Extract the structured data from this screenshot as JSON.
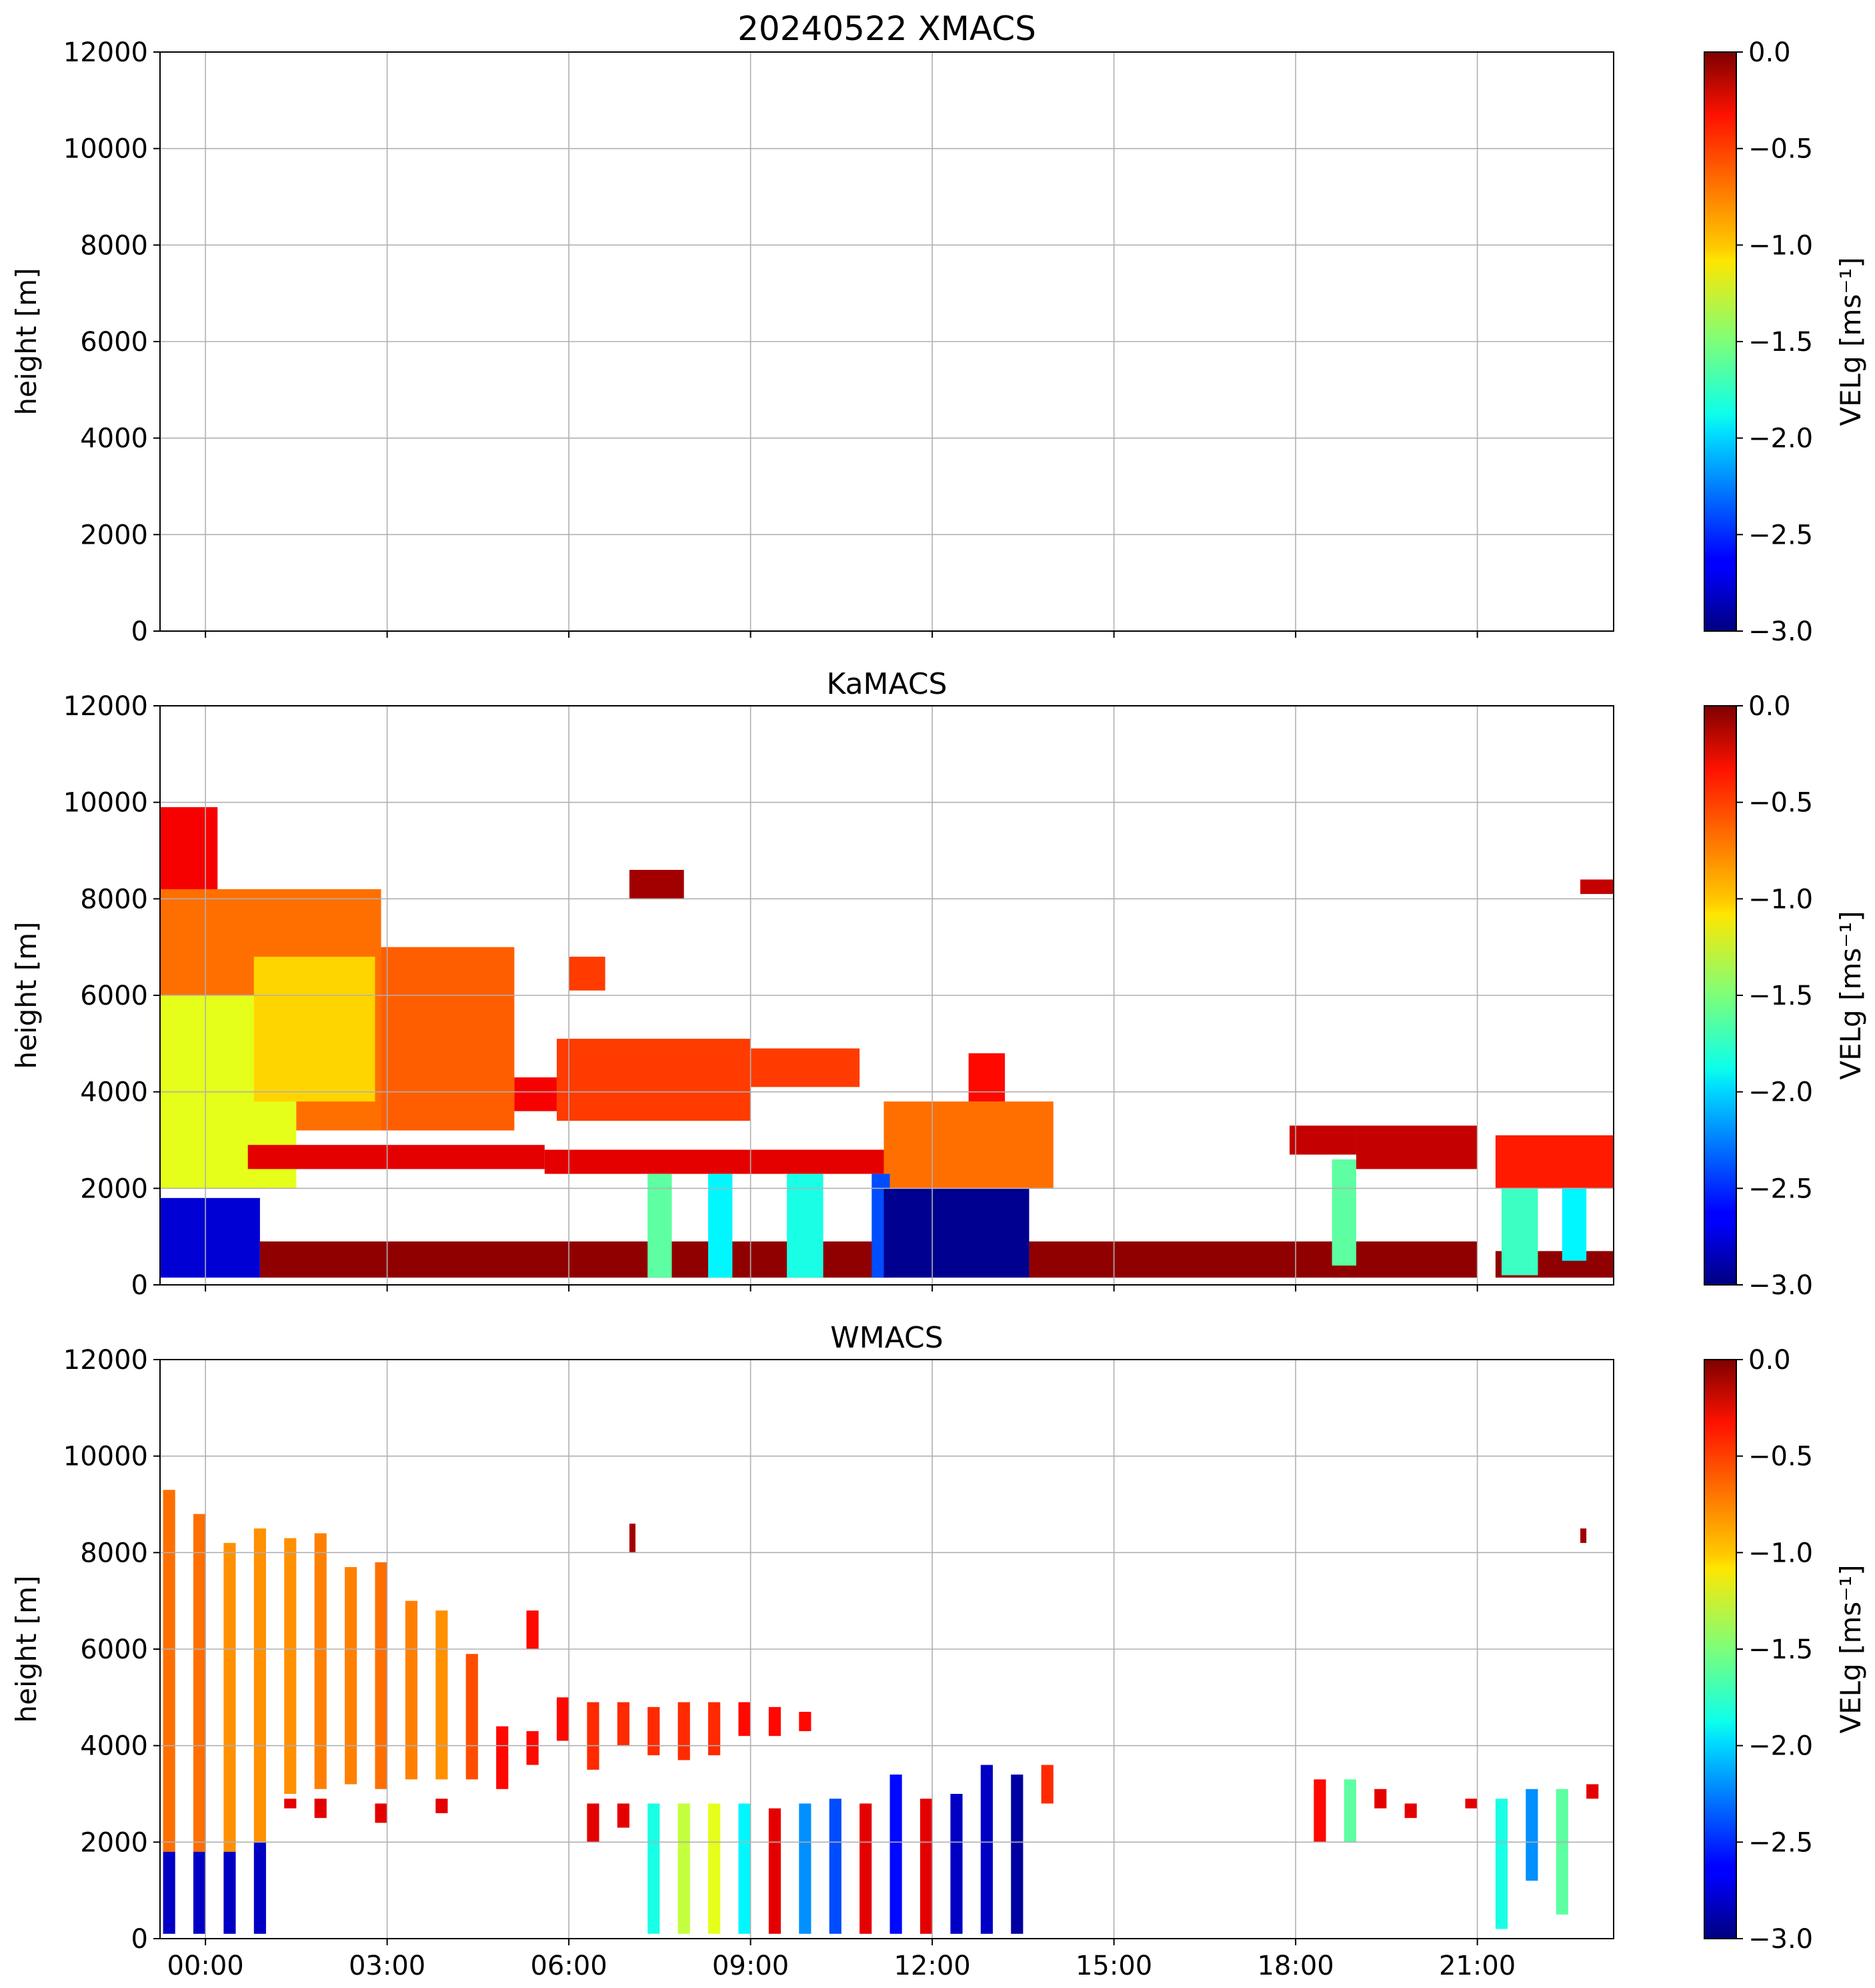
{
  "figure": {
    "title_prefix": "20240522"
  },
  "chart_data": [
    {
      "type": "heatmap",
      "title": "XMACS",
      "ylabel": "height [m]",
      "ylim": [
        0,
        12000
      ],
      "yticks": [
        0,
        2000,
        4000,
        6000,
        8000,
        10000,
        12000
      ],
      "xlim": [
        -0.75,
        23.25
      ],
      "xticks": [
        0,
        3,
        6,
        9,
        12,
        15,
        18,
        21
      ],
      "xtick_labels": [
        "00:00",
        "03:00",
        "06:00",
        "09:00",
        "12:00",
        "15:00",
        "18:00",
        "21:00"
      ],
      "grid": true,
      "colorbar": {
        "label": "VELg [ms⁻¹]",
        "range": [
          -3.0,
          0.0
        ],
        "ticks": [
          "0.0",
          "−0.5",
          "−1.0",
          "−1.5",
          "−2.0",
          "−2.5",
          "−3.0"
        ],
        "colormap": "jet"
      },
      "regions": []
    },
    {
      "type": "heatmap",
      "title": "KaMACS",
      "ylabel": "height [m]",
      "ylim": [
        0,
        12000
      ],
      "yticks": [
        0,
        2000,
        4000,
        6000,
        8000,
        10000,
        12000
      ],
      "xlim": [
        -0.75,
        23.25
      ],
      "xticks": [
        0,
        3,
        6,
        9,
        12,
        15,
        18,
        21
      ],
      "xtick_labels": [
        "00:00",
        "03:00",
        "06:00",
        "09:00",
        "12:00",
        "15:00",
        "18:00",
        "21:00"
      ],
      "grid": true,
      "colorbar": {
        "label": "VELg [ms⁻¹]",
        "range": [
          -3.0,
          0.0
        ],
        "ticks": [
          "0.0",
          "−0.5",
          "−1.0",
          "−1.5",
          "−2.0",
          "−2.5",
          "−3.0"
        ],
        "colormap": "jet"
      },
      "regions": [
        {
          "t0": -0.75,
          "t1": 0.2,
          "h0": 3800,
          "h1": 9900,
          "v": -0.35
        },
        {
          "t0": -0.75,
          "t1": 2.9,
          "h0": 3200,
          "h1": 8200,
          "v": -0.7
        },
        {
          "t0": -0.75,
          "t1": 1.5,
          "h0": 2000,
          "h1": 6000,
          "v": -1.2
        },
        {
          "t0": 0.8,
          "t1": 2.8,
          "h0": 3800,
          "h1": 6800,
          "v": -1.0
        },
        {
          "t0": 2.9,
          "t1": 5.1,
          "h0": 3200,
          "h1": 7000,
          "v": -0.65
        },
        {
          "t0": 5.1,
          "t1": 5.8,
          "h0": 3600,
          "h1": 4300,
          "v": -0.35
        },
        {
          "t0": 5.8,
          "t1": 9.0,
          "h0": 3400,
          "h1": 5100,
          "v": -0.55
        },
        {
          "t0": 9.0,
          "t1": 10.8,
          "h0": 4100,
          "h1": 4900,
          "v": -0.55
        },
        {
          "t0": 6.0,
          "t1": 6.6,
          "h0": 6100,
          "h1": 6800,
          "v": -0.55
        },
        {
          "t0": 7.0,
          "t1": 7.9,
          "h0": 8000,
          "h1": 8600,
          "v": -0.1
        },
        {
          "t0": 0.7,
          "t1": 5.6,
          "h0": 2400,
          "h1": 2900,
          "v": -0.3
        },
        {
          "t0": 5.6,
          "t1": 11.6,
          "h0": 2300,
          "h1": 2800,
          "v": -0.3
        },
        {
          "t0": 11.2,
          "t1": 14.0,
          "h0": 2000,
          "h1": 3800,
          "v": -0.7
        },
        {
          "t0": 12.6,
          "t1": 13.2,
          "h0": 3800,
          "h1": 4800,
          "v": -0.4
        },
        {
          "t0": 17.9,
          "t1": 19.0,
          "h0": 2700,
          "h1": 3300,
          "v": -0.2
        },
        {
          "t0": 19.0,
          "t1": 21.0,
          "h0": 2400,
          "h1": 3300,
          "v": -0.2
        },
        {
          "t0": 21.3,
          "t1": 23.25,
          "h0": 2000,
          "h1": 3100,
          "v": -0.45
        },
        {
          "t0": 22.7,
          "t1": 23.25,
          "h0": 8100,
          "h1": 8400,
          "v": -0.2
        },
        {
          "t0": -0.75,
          "t1": 0.9,
          "h0": 150,
          "h1": 1800,
          "v": -2.75
        },
        {
          "t0": 0.9,
          "t1": 11.2,
          "h0": 150,
          "h1": 900,
          "v": -0.05
        },
        {
          "t0": 7.3,
          "t1": 7.7,
          "h0": 150,
          "h1": 2300,
          "v": -1.6
        },
        {
          "t0": 8.3,
          "t1": 8.7,
          "h0": 150,
          "h1": 2300,
          "v": -1.9
        },
        {
          "t0": 9.6,
          "t1": 10.2,
          "h0": 150,
          "h1": 2300,
          "v": -1.8
        },
        {
          "t0": 11.0,
          "t1": 11.3,
          "h0": 150,
          "h1": 2300,
          "v": -2.4
        },
        {
          "t0": 11.2,
          "t1": 13.6,
          "h0": 150,
          "h1": 2000,
          "v": -2.95
        },
        {
          "t0": 13.6,
          "t1": 21.0,
          "h0": 150,
          "h1": 900,
          "v": -0.05
        },
        {
          "t0": 18.6,
          "t1": 19.0,
          "h0": 400,
          "h1": 2600,
          "v": -1.6
        },
        {
          "t0": 21.3,
          "t1": 23.25,
          "h0": 150,
          "h1": 700,
          "v": -0.05
        },
        {
          "t0": 21.4,
          "t1": 22.0,
          "h0": 200,
          "h1": 2000,
          "v": -1.7
        },
        {
          "t0": 22.4,
          "t1": 22.8,
          "h0": 500,
          "h1": 2000,
          "v": -1.9
        }
      ]
    },
    {
      "type": "heatmap",
      "title": "WMACS",
      "ylabel": "height [m]",
      "ylim": [
        0,
        12000
      ],
      "yticks": [
        0,
        2000,
        4000,
        6000,
        8000,
        10000,
        12000
      ],
      "xlim": [
        -0.75,
        23.25
      ],
      "xticks": [
        0,
        3,
        6,
        9,
        12,
        15,
        18,
        21
      ],
      "xtick_labels": [
        "00:00",
        "03:00",
        "06:00",
        "09:00",
        "12:00",
        "15:00",
        "18:00",
        "21:00"
      ],
      "grid": true,
      "colorbar": {
        "label": "VELg [ms⁻¹]",
        "range": [
          -3.0,
          0.0
        ],
        "ticks": [
          "0.0",
          "−0.5",
          "−1.0",
          "−1.5",
          "−2.0",
          "−2.5",
          "−3.0"
        ],
        "colormap": "jet"
      },
      "regions": [
        {
          "t0": -0.7,
          "t1": -0.5,
          "h0": 1800,
          "h1": 9300,
          "v": -0.7
        },
        {
          "t0": -0.2,
          "t1": 0.0,
          "h0": 1800,
          "h1": 8800,
          "v": -0.7
        },
        {
          "t0": 0.3,
          "t1": 0.5,
          "h0": 1800,
          "h1": 8200,
          "v": -0.8
        },
        {
          "t0": 0.8,
          "t1": 1.0,
          "h0": 2000,
          "h1": 8500,
          "v": -0.8
        },
        {
          "t0": 1.3,
          "t1": 1.5,
          "h0": 3000,
          "h1": 8300,
          "v": -0.8
        },
        {
          "t0": 1.8,
          "t1": 2.0,
          "h0": 3100,
          "h1": 8400,
          "v": -0.75
        },
        {
          "t0": 2.3,
          "t1": 2.5,
          "h0": 3200,
          "h1": 7700,
          "v": -0.75
        },
        {
          "t0": 2.8,
          "t1": 3.0,
          "h0": 3100,
          "h1": 7800,
          "v": -0.7
        },
        {
          "t0": 3.3,
          "t1": 3.5,
          "h0": 3300,
          "h1": 7000,
          "v": -0.75
        },
        {
          "t0": 3.8,
          "t1": 4.0,
          "h0": 3300,
          "h1": 6800,
          "v": -0.8
        },
        {
          "t0": 4.3,
          "t1": 4.5,
          "h0": 3300,
          "h1": 5900,
          "v": -0.6
        },
        {
          "t0": 4.8,
          "t1": 5.0,
          "h0": 3100,
          "h1": 4400,
          "v": -0.4
        },
        {
          "t0": 5.3,
          "t1": 5.5,
          "h0": 3600,
          "h1": 4300,
          "v": -0.4
        },
        {
          "t0": 5.3,
          "t1": 5.5,
          "h0": 6000,
          "h1": 6800,
          "v": -0.4
        },
        {
          "t0": 5.8,
          "t1": 6.0,
          "h0": 4100,
          "h1": 5000,
          "v": -0.4
        },
        {
          "t0": 6.3,
          "t1": 6.5,
          "h0": 3500,
          "h1": 4900,
          "v": -0.5
        },
        {
          "t0": 6.8,
          "t1": 7.0,
          "h0": 4000,
          "h1": 4900,
          "v": -0.5
        },
        {
          "t0": 7.3,
          "t1": 7.5,
          "h0": 3800,
          "h1": 4800,
          "v": -0.5
        },
        {
          "t0": 7.8,
          "t1": 8.0,
          "h0": 3700,
          "h1": 4900,
          "v": -0.5
        },
        {
          "t0": 8.3,
          "t1": 8.5,
          "h0": 3800,
          "h1": 4900,
          "v": -0.5
        },
        {
          "t0": 8.8,
          "t1": 9.0,
          "h0": 4200,
          "h1": 4900,
          "v": -0.4
        },
        {
          "t0": 9.3,
          "t1": 9.5,
          "h0": 4200,
          "h1": 4800,
          "v": -0.4
        },
        {
          "t0": 9.8,
          "t1": 10.0,
          "h0": 4300,
          "h1": 4700,
          "v": -0.4
        },
        {
          "t0": 7.0,
          "t1": 7.1,
          "h0": 8000,
          "h1": 8600,
          "v": -0.1
        },
        {
          "t0": 1.3,
          "t1": 1.5,
          "h0": 2700,
          "h1": 2900,
          "v": -0.3
        },
        {
          "t0": 1.8,
          "t1": 2.0,
          "h0": 2500,
          "h1": 2900,
          "v": -0.3
        },
        {
          "t0": 2.8,
          "t1": 3.0,
          "h0": 2400,
          "h1": 2800,
          "v": -0.3
        },
        {
          "t0": 3.8,
          "t1": 4.0,
          "h0": 2600,
          "h1": 2900,
          "v": -0.3
        },
        {
          "t0": 6.3,
          "t1": 6.5,
          "h0": 2000,
          "h1": 2800,
          "v": -0.3
        },
        {
          "t0": 6.8,
          "t1": 7.0,
          "h0": 2300,
          "h1": 2800,
          "v": -0.3
        },
        {
          "t0": 7.3,
          "t1": 7.5,
          "h0": 100,
          "h1": 2800,
          "v": -1.8
        },
        {
          "t0": 7.8,
          "t1": 8.0,
          "h0": 100,
          "h1": 2800,
          "v": -1.3
        },
        {
          "t0": 8.3,
          "t1": 8.5,
          "h0": 100,
          "h1": 2800,
          "v": -1.2
        },
        {
          "t0": 8.8,
          "t1": 9.0,
          "h0": 100,
          "h1": 2800,
          "v": -1.9
        },
        {
          "t0": 9.3,
          "t1": 9.5,
          "h0": 100,
          "h1": 2700,
          "v": -0.3
        },
        {
          "t0": 9.8,
          "t1": 10.0,
          "h0": 100,
          "h1": 2800,
          "v": -2.2
        },
        {
          "t0": 10.3,
          "t1": 10.5,
          "h0": 100,
          "h1": 2900,
          "v": -2.4
        },
        {
          "t0": 10.8,
          "t1": 11.0,
          "h0": 100,
          "h1": 2800,
          "v": -0.3
        },
        {
          "t0": 11.3,
          "t1": 11.5,
          "h0": 100,
          "h1": 3400,
          "v": -2.6
        },
        {
          "t0": 11.8,
          "t1": 12.0,
          "h0": 100,
          "h1": 2900,
          "v": -0.3
        },
        {
          "t0": 12.3,
          "t1": 12.5,
          "h0": 100,
          "h1": 3000,
          "v": -2.8
        },
        {
          "t0": 12.8,
          "t1": 13.0,
          "h0": 100,
          "h1": 3600,
          "v": -2.8
        },
        {
          "t0": 13.3,
          "t1": 13.5,
          "h0": 100,
          "h1": 3400,
          "v": -2.9
        },
        {
          "t0": 13.8,
          "t1": 14.0,
          "h0": 2800,
          "h1": 3600,
          "v": -0.5
        },
        {
          "t0": -0.7,
          "t1": -0.5,
          "h0": 100,
          "h1": 1800,
          "v": -2.8
        },
        {
          "t0": -0.2,
          "t1": 0.0,
          "h0": 100,
          "h1": 1800,
          "v": -2.8
        },
        {
          "t0": 0.3,
          "t1": 0.5,
          "h0": 100,
          "h1": 1800,
          "v": -2.8
        },
        {
          "t0": 0.8,
          "t1": 1.0,
          "h0": 100,
          "h1": 2000,
          "v": -2.8
        },
        {
          "t0": 18.3,
          "t1": 18.5,
          "h0": 2000,
          "h1": 3300,
          "v": -0.4
        },
        {
          "t0": 18.8,
          "t1": 19.0,
          "h0": 2000,
          "h1": 3300,
          "v": -1.6
        },
        {
          "t0": 19.3,
          "t1": 19.5,
          "h0": 2700,
          "h1": 3100,
          "v": -0.3
        },
        {
          "t0": 19.8,
          "t1": 20.0,
          "h0": 2500,
          "h1": 2800,
          "v": -0.3
        },
        {
          "t0": 20.8,
          "t1": 21.0,
          "h0": 2700,
          "h1": 2900,
          "v": -0.3
        },
        {
          "t0": 21.3,
          "t1": 21.5,
          "h0": 200,
          "h1": 2900,
          "v": -1.8
        },
        {
          "t0": 21.8,
          "t1": 22.0,
          "h0": 1200,
          "h1": 3100,
          "v": -2.2
        },
        {
          "t0": 22.3,
          "t1": 22.5,
          "h0": 500,
          "h1": 3100,
          "v": -1.6
        },
        {
          "t0": 22.8,
          "t1": 23.0,
          "h0": 2900,
          "h1": 3200,
          "v": -0.3
        },
        {
          "t0": 22.7,
          "t1": 22.8,
          "h0": 8200,
          "h1": 8500,
          "v": -0.1
        }
      ]
    }
  ]
}
